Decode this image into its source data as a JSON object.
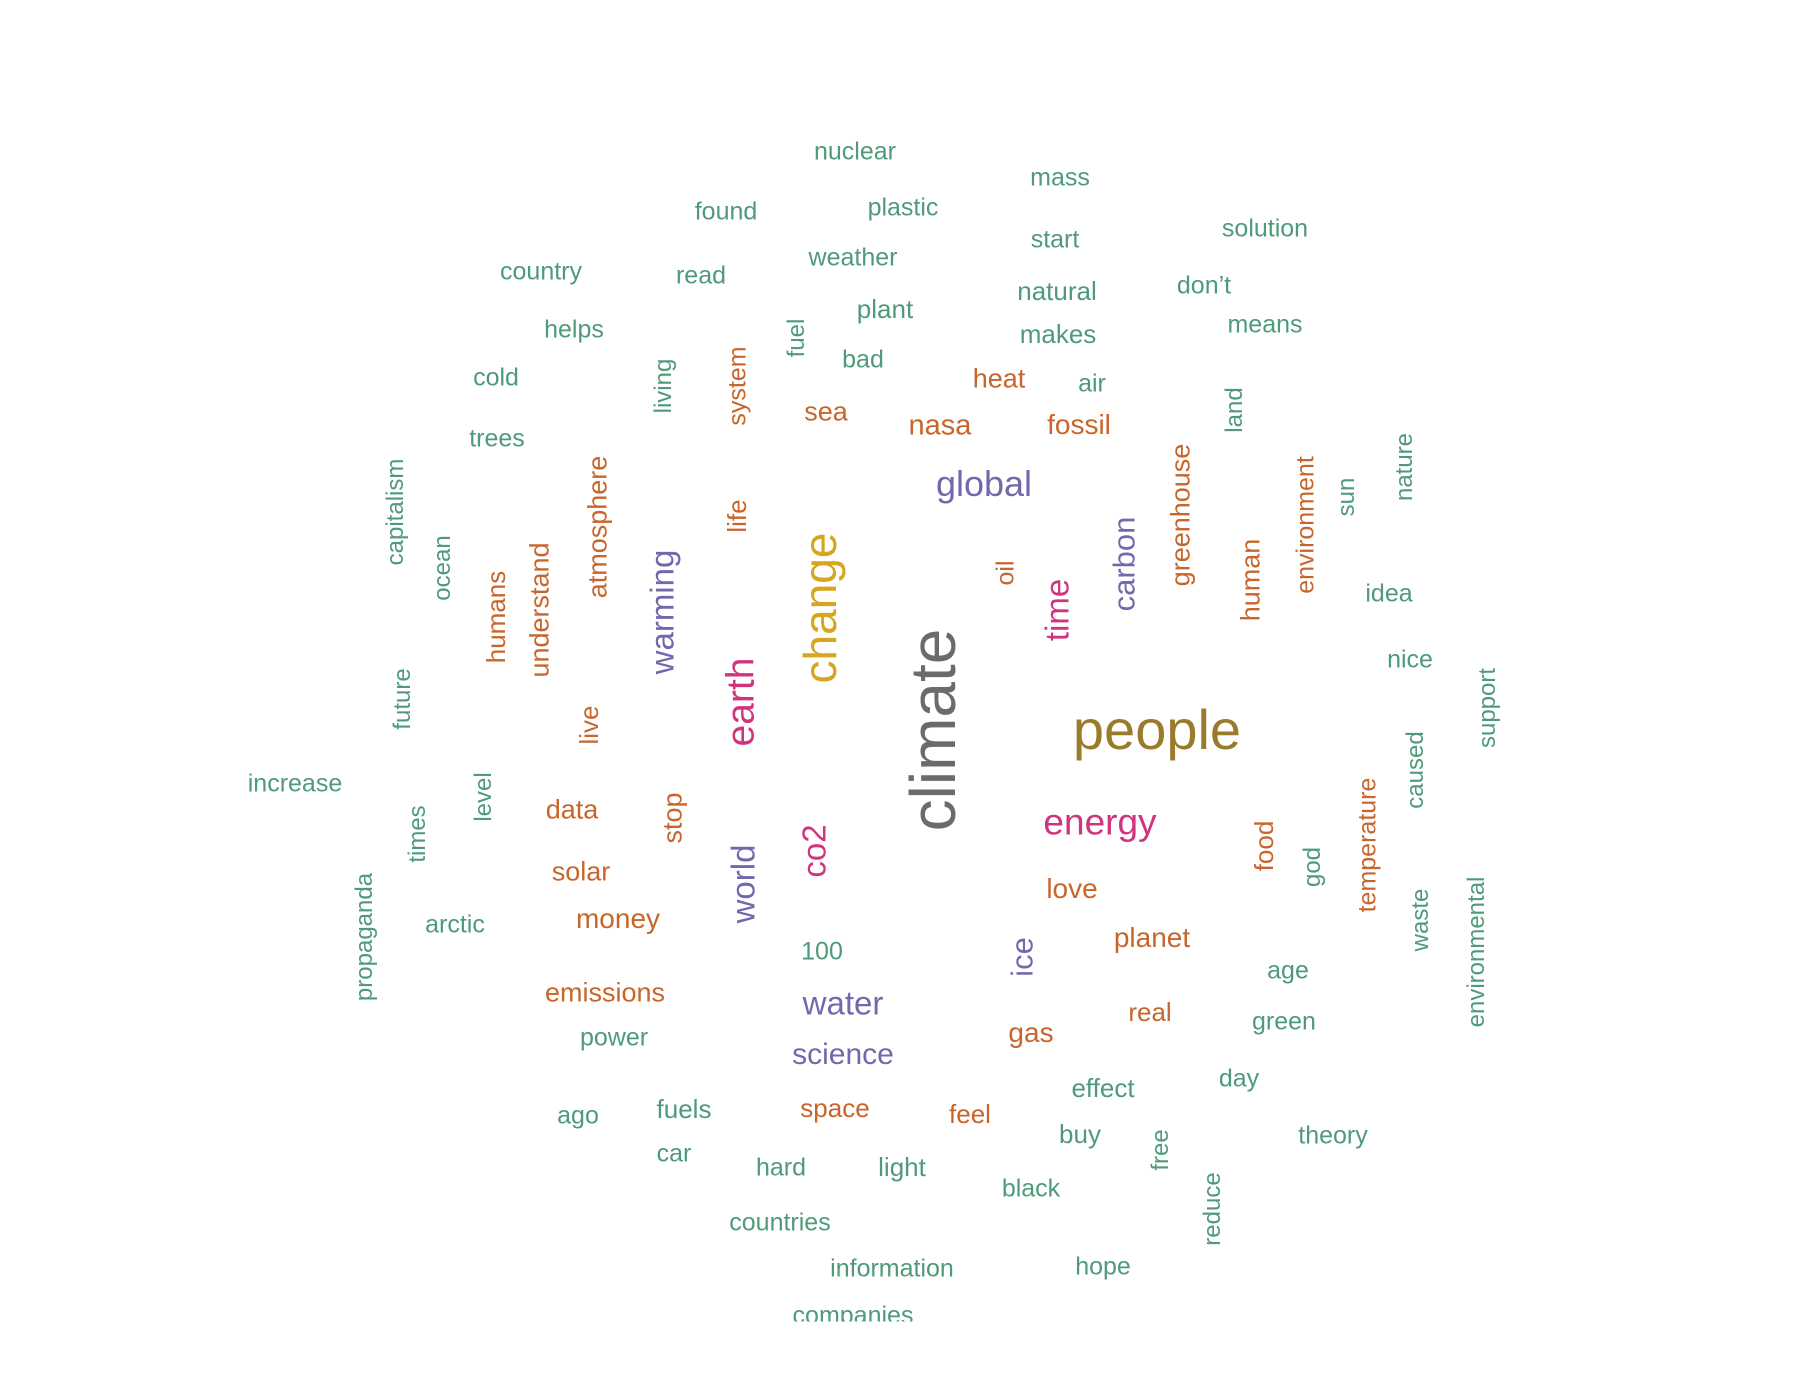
{
  "colors": {
    "green": "#4e9a7a",
    "orange": "#c8652a",
    "purple": "#7468ad",
    "magenta": "#d1347f",
    "gold": "#d6a61f",
    "brown": "#9a7b2c",
    "gray": "#6b6b6b"
  },
  "words": [
    {
      "text": "climate",
      "color": "gray",
      "size": 3
    },
    {
      "text": "people",
      "color": "brown",
      "size": 3
    },
    {
      "text": "change",
      "color": "gold",
      "size": 3
    },
    {
      "text": "earth",
      "color": "magenta",
      "size": 2
    },
    {
      "text": "energy",
      "color": "magenta",
      "size": 2
    },
    {
      "text": "global",
      "color": "purple",
      "size": 2
    },
    {
      "text": "warming",
      "color": "purple",
      "size": 2
    },
    {
      "text": "world",
      "color": "purple",
      "size": 2
    },
    {
      "text": "co2",
      "color": "magenta",
      "size": 2
    },
    {
      "text": "time",
      "color": "magenta",
      "size": 2
    },
    {
      "text": "carbon",
      "color": "purple",
      "size": 2
    },
    {
      "text": "water",
      "color": "purple",
      "size": 2
    },
    {
      "text": "science",
      "color": "purple",
      "size": 2
    },
    {
      "text": "ice",
      "color": "purple",
      "size": 2
    },
    {
      "text": "planet",
      "color": "orange",
      "size": 1
    },
    {
      "text": "love",
      "color": "orange",
      "size": 1
    },
    {
      "text": "gas",
      "color": "orange",
      "size": 1
    },
    {
      "text": "greenhouse",
      "color": "orange",
      "size": 1
    },
    {
      "text": "human",
      "color": "orange",
      "size": 1
    },
    {
      "text": "environment",
      "color": "orange",
      "size": 1
    },
    {
      "text": "atmosphere",
      "color": "orange",
      "size": 1
    },
    {
      "text": "understand",
      "color": "orange",
      "size": 1
    },
    {
      "text": "humans",
      "color": "orange",
      "size": 1
    },
    {
      "text": "life",
      "color": "orange",
      "size": 1
    },
    {
      "text": "system",
      "color": "orange",
      "size": 1
    },
    {
      "text": "sea",
      "color": "orange",
      "size": 1
    },
    {
      "text": "nasa",
      "color": "orange",
      "size": 1
    },
    {
      "text": "heat",
      "color": "orange",
      "size": 1
    },
    {
      "text": "fossil",
      "color": "orange",
      "size": 1
    },
    {
      "text": "oil",
      "color": "orange",
      "size": 1
    },
    {
      "text": "live",
      "color": "orange",
      "size": 1
    },
    {
      "text": "data",
      "color": "orange",
      "size": 1
    },
    {
      "text": "stop",
      "color": "orange",
      "size": 1
    },
    {
      "text": "solar",
      "color": "orange",
      "size": 1
    },
    {
      "text": "money",
      "color": "orange",
      "size": 1
    },
    {
      "text": "emissions",
      "color": "orange",
      "size": 1
    },
    {
      "text": "space",
      "color": "orange",
      "size": 1
    },
    {
      "text": "feel",
      "color": "orange",
      "size": 1
    },
    {
      "text": "real",
      "color": "orange",
      "size": 1
    },
    {
      "text": "food",
      "color": "orange",
      "size": 1
    },
    {
      "text": "temperature",
      "color": "orange",
      "size": 1
    },
    {
      "text": "nuclear",
      "color": "green",
      "size": 0
    },
    {
      "text": "mass",
      "color": "green",
      "size": 0
    },
    {
      "text": "found",
      "color": "green",
      "size": 0
    },
    {
      "text": "plastic",
      "color": "green",
      "size": 0
    },
    {
      "text": "start",
      "color": "green",
      "size": 0
    },
    {
      "text": "solution",
      "color": "green",
      "size": 0
    },
    {
      "text": "country",
      "color": "green",
      "size": 0
    },
    {
      "text": "read",
      "color": "green",
      "size": 0
    },
    {
      "text": "weather",
      "color": "green",
      "size": 0
    },
    {
      "text": "natural",
      "color": "green",
      "size": 0
    },
    {
      "text": "don’t",
      "color": "green",
      "size": 0
    },
    {
      "text": "helps",
      "color": "green",
      "size": 0
    },
    {
      "text": "plant",
      "color": "green",
      "size": 0
    },
    {
      "text": "makes",
      "color": "green",
      "size": 0
    },
    {
      "text": "means",
      "color": "green",
      "size": 0
    },
    {
      "text": "fuel",
      "color": "green",
      "size": 0
    },
    {
      "text": "cold",
      "color": "green",
      "size": 0
    },
    {
      "text": "living",
      "color": "green",
      "size": 0
    },
    {
      "text": "bad",
      "color": "green",
      "size": 0
    },
    {
      "text": "air",
      "color": "green",
      "size": 0
    },
    {
      "text": "land",
      "color": "green",
      "size": 0
    },
    {
      "text": "trees",
      "color": "green",
      "size": 0
    },
    {
      "text": "capitalism",
      "color": "green",
      "size": 0
    },
    {
      "text": "sun",
      "color": "green",
      "size": 0
    },
    {
      "text": "nature",
      "color": "green",
      "size": 0
    },
    {
      "text": "ocean",
      "color": "green",
      "size": 0
    },
    {
      "text": "idea",
      "color": "green",
      "size": 0
    },
    {
      "text": "future",
      "color": "green",
      "size": 0
    },
    {
      "text": "nice",
      "color": "green",
      "size": 0
    },
    {
      "text": "support",
      "color": "green",
      "size": 0
    },
    {
      "text": "caused",
      "color": "green",
      "size": 0
    },
    {
      "text": "increase",
      "color": "green",
      "size": 0
    },
    {
      "text": "level",
      "color": "green",
      "size": 0
    },
    {
      "text": "times",
      "color": "green",
      "size": 0
    },
    {
      "text": "god",
      "color": "green",
      "size": 0
    },
    {
      "text": "propaganda",
      "color": "green",
      "size": 0
    },
    {
      "text": "arctic",
      "color": "green",
      "size": 0
    },
    {
      "text": "waste",
      "color": "green",
      "size": 0
    },
    {
      "text": "environmental",
      "color": "green",
      "size": 0
    },
    {
      "text": "100",
      "color": "green",
      "size": 0
    },
    {
      "text": "age",
      "color": "green",
      "size": 0
    },
    {
      "text": "power",
      "color": "green",
      "size": 0
    },
    {
      "text": "green",
      "color": "green",
      "size": 0
    },
    {
      "text": "effect",
      "color": "green",
      "size": 0
    },
    {
      "text": "day",
      "color": "green",
      "size": 0
    },
    {
      "text": "ago",
      "color": "green",
      "size": 0
    },
    {
      "text": "fuels",
      "color": "green",
      "size": 0
    },
    {
      "text": "buy",
      "color": "green",
      "size": 0
    },
    {
      "text": "theory",
      "color": "green",
      "size": 0
    },
    {
      "text": "car",
      "color": "green",
      "size": 0
    },
    {
      "text": "hard",
      "color": "green",
      "size": 0
    },
    {
      "text": "light",
      "color": "green",
      "size": 0
    },
    {
      "text": "free",
      "color": "green",
      "size": 0
    },
    {
      "text": "black",
      "color": "green",
      "size": 0
    },
    {
      "text": "reduce",
      "color": "green",
      "size": 0
    },
    {
      "text": "countries",
      "color": "green",
      "size": 0
    },
    {
      "text": "information",
      "color": "green",
      "size": 0
    },
    {
      "text": "hope",
      "color": "green",
      "size": 0
    },
    {
      "text": "companies",
      "color": "green",
      "size": 0
    }
  ]
}
